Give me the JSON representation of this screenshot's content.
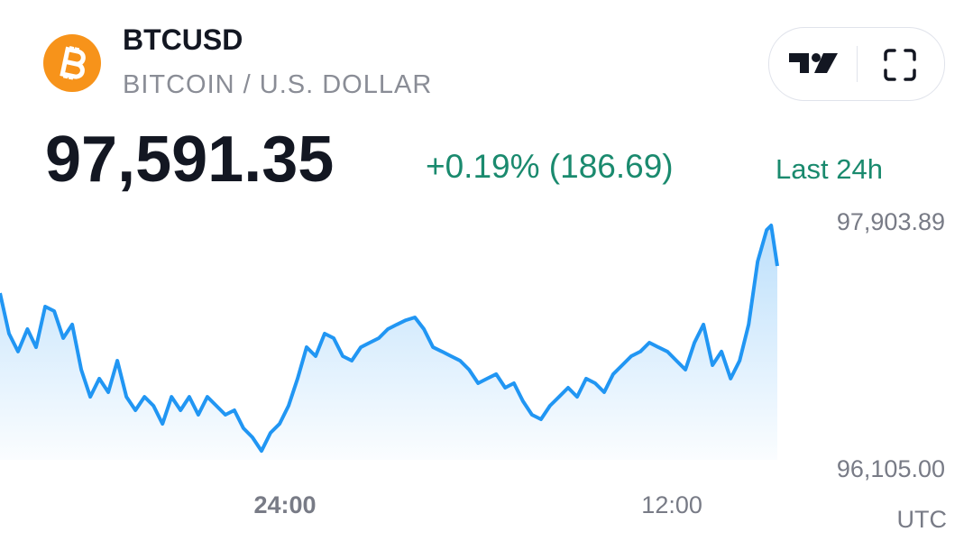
{
  "header": {
    "symbol": "BTCUSD",
    "name": "BITCOIN / U.S. DOLLAR",
    "price": "97,591.35",
    "change": "+0.19% (186.69)",
    "period": "Last 24h"
  },
  "chart_data": {
    "type": "area",
    "color": "#2196f3",
    "x": [
      -8.84,
      -8.56,
      -8.28,
      -7.99,
      -7.72,
      -7.44,
      -7.16,
      -6.88,
      -6.6,
      -6.32,
      -6.04,
      -5.76,
      -5.48,
      -5.2,
      -4.92,
      -4.64,
      -4.36,
      -4.08,
      -3.8,
      -3.52,
      -3.24,
      -2.97,
      -2.69,
      -2.41,
      -2.13,
      -1.85,
      -1.57,
      -1.29,
      -1.01,
      -0.73,
      -0.45,
      -0.17,
      0.11,
      0.39,
      0.67,
      0.95,
      1.23,
      1.51,
      1.79,
      2.07,
      2.35,
      2.63,
      2.91,
      3.19,
      3.47,
      3.75,
      4.03,
      4.31,
      4.59,
      4.87,
      5.15,
      5.43,
      5.71,
      5.99,
      6.27,
      6.55,
      6.83,
      7.1,
      7.38,
      7.66,
      7.94,
      8.22,
      8.5,
      8.78,
      9.06,
      9.34,
      9.62,
      9.9,
      10.18,
      10.46,
      10.74,
      11.02,
      11.3,
      11.58,
      11.86,
      12.14,
      12.42,
      12.7,
      12.98,
      13.26,
      13.54,
      13.82,
      14.1,
      14.38,
      14.66,
      14.94,
      15.08,
      15.27
    ],
    "values": [
      97398,
      97103,
      96972,
      97136,
      97004,
      97300,
      97267,
      97070,
      97169,
      96840,
      96643,
      96775,
      96676,
      96906,
      96643,
      96545,
      96643,
      96578,
      96446,
      96643,
      96545,
      96643,
      96512,
      96643,
      96578,
      96512,
      96545,
      96414,
      96348,
      96249,
      96381,
      96446,
      96578,
      96775,
      97004,
      96939,
      97103,
      97070,
      96939,
      96906,
      97004,
      97037,
      97070,
      97136,
      97169,
      97201,
      97221,
      97136,
      97004,
      96972,
      96939,
      96906,
      96840,
      96742,
      96775,
      96808,
      96709,
      96742,
      96611,
      96512,
      96479,
      96578,
      96643,
      96709,
      96643,
      96775,
      96742,
      96676,
      96808,
      96873,
      96939,
      96972,
      97037,
      97004,
      96972,
      96906,
      96840,
      97037,
      97169,
      96873,
      96972,
      96775,
      96906,
      97169,
      97628,
      97858,
      97891,
      97595
    ],
    "xlim": [
      -8.84,
      15.27
    ],
    "xticks": [
      {
        "value": 0,
        "label": "24:00"
      },
      {
        "value": 12,
        "label": "12:00"
      }
    ],
    "xlabel": "UTC",
    "ylim": [
      96105,
      97903.89
    ],
    "yticks": [
      {
        "value": 97903.89,
        "label": "97,903.89"
      },
      {
        "value": 96105,
        "label": "96,105.00"
      }
    ],
    "grid": false
  }
}
